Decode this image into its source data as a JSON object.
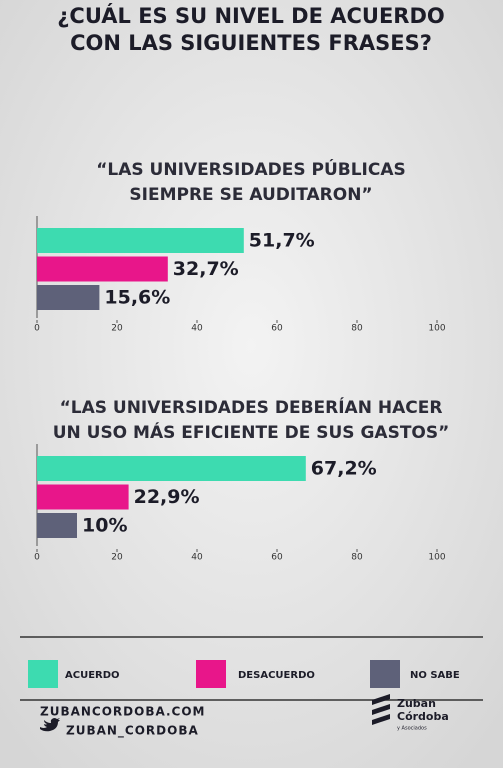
{
  "title": [
    "¿CUÁL ES SU NIVEL DE ACUERDO",
    "CON LAS SIGUIENTES FRASES?"
  ],
  "chart_data": [
    {
      "type": "bar",
      "orientation": "horizontal",
      "title": [
        "“LAS UNIVERSIDADES PÚBLICAS",
        "SIEMPRE SE AUDITARON”"
      ],
      "values": [
        51.7,
        32.7,
        15.6
      ],
      "value_labels": [
        "51,7%",
        "32,7%",
        "15,6%"
      ],
      "colors": [
        "#3ddbb0",
        "#e8168a",
        "#5e6179"
      ],
      "xlim": [
        0,
        100
      ],
      "xticks": [
        0,
        20,
        40,
        60,
        80,
        100
      ]
    },
    {
      "type": "bar",
      "orientation": "horizontal",
      "title": [
        "“LAS UNIVERSIDADES DEBERÍAN HACER",
        "UN USO MÁS EFICIENTE DE SUS GASTOS”"
      ],
      "values": [
        67.2,
        22.9,
        10
      ],
      "value_labels": [
        "67,2%",
        "22,9%",
        "10%"
      ],
      "colors": [
        "#3ddbb0",
        "#e8168a",
        "#5e6179"
      ],
      "xlim": [
        0,
        100
      ],
      "xticks": [
        0,
        20,
        40,
        60,
        80,
        100
      ]
    }
  ],
  "legend": [
    {
      "name": "ACUERDO",
      "color": "#3ddbb0"
    },
    {
      "name": "DESACUERDO",
      "color": "#e8168a"
    },
    {
      "name": "NO SABE",
      "color": "#5e6179"
    }
  ],
  "footer": {
    "website": "ZUBANCORDOBA.COM",
    "twitter": "ZUBAN_CORDOBA",
    "logo": [
      "Zuban",
      "Córdoba",
      "y Asociados"
    ]
  }
}
